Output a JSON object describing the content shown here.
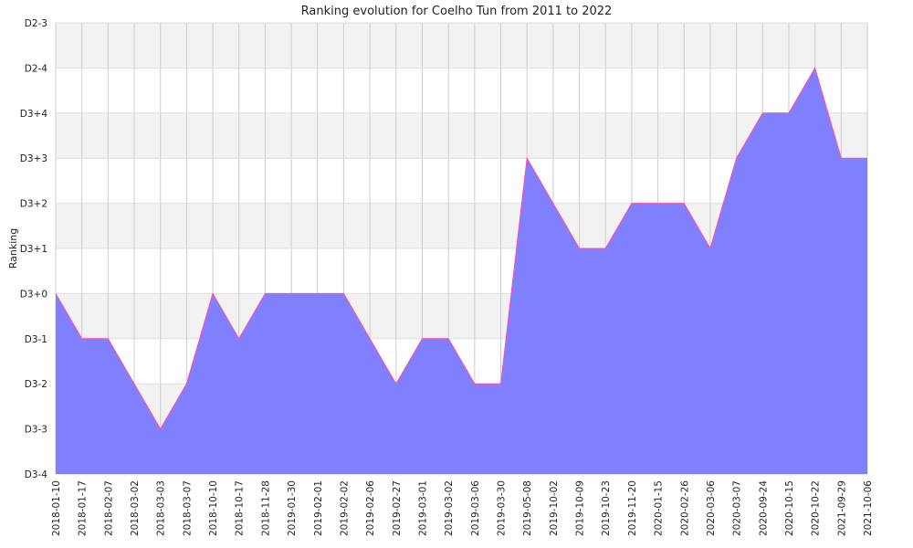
{
  "chart_data": {
    "type": "area",
    "title": "Ranking evolution for Coelho Tun from 2011 to 2022",
    "xlabel": "",
    "ylabel": "Ranking",
    "y_ticks": [
      "D3-4",
      "D3-3",
      "D3-2",
      "D3-1",
      "D3+0",
      "D3+1",
      "D3+2",
      "D3+3",
      "D3+4",
      "D2-4",
      "D2-3"
    ],
    "categories": [
      "2018-01-10",
      "2018-01-17",
      "2018-02-07",
      "2018-03-02",
      "2018-03-03",
      "2018-03-07",
      "2018-10-10",
      "2018-10-17",
      "2018-11-28",
      "2019-01-30",
      "2019-02-01",
      "2019-02-02",
      "2019-02-06",
      "2019-02-27",
      "2019-03-01",
      "2019-03-02",
      "2019-03-06",
      "2019-03-30",
      "2019-05-08",
      "2019-10-02",
      "2019-10-09",
      "2019-10-23",
      "2019-11-20",
      "2020-01-15",
      "2020-02-26",
      "2020-03-06",
      "2020-03-07",
      "2020-09-24",
      "2020-10-15",
      "2020-10-22",
      "2021-09-29",
      "2021-10-06"
    ],
    "series": [
      {
        "values": [
          "D3+0",
          "D3-1",
          "D3-1",
          "D3-2",
          "D3-3",
          "D3-2",
          "D3+0",
          "D3-1",
          "D3+0",
          "D3+0",
          "D3+0",
          "D3+0",
          "D3-1",
          "D3-2",
          "D3-1",
          "D3-1",
          "D3-2",
          "D3-2",
          "D3+3",
          "D3+2",
          "D3+1",
          "D3+1",
          "D3+2",
          "D3+2",
          "D3+2",
          "D3+1",
          "D3+3",
          "D3+4",
          "D3+4",
          "D2-4",
          "D3+3",
          "D3+3"
        ]
      }
    ],
    "fill_color": "#8080ff",
    "line_color": "#ff4da6",
    "grid": true,
    "legend": "none"
  }
}
